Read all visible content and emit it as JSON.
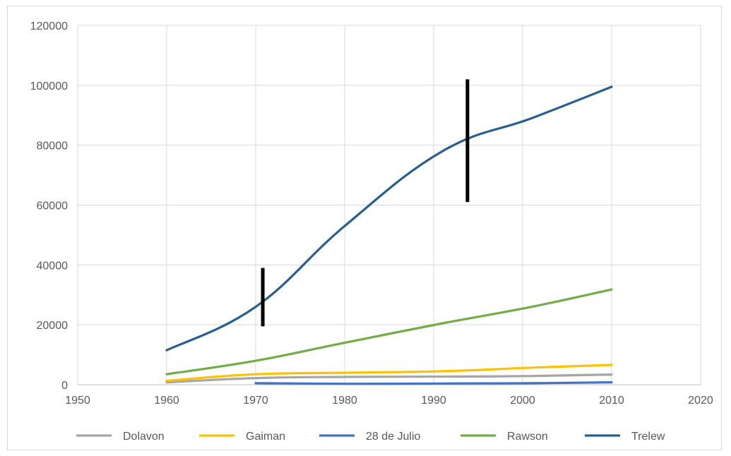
{
  "chart_data": {
    "type": "line",
    "title": "",
    "xlabel": "",
    "ylabel": "",
    "xlim": [
      1950,
      2020
    ],
    "ylim": [
      0,
      120000
    ],
    "x_ticks": [
      1950,
      1960,
      1970,
      1980,
      1990,
      2000,
      2010,
      2020
    ],
    "y_ticks": [
      0,
      20000,
      40000,
      60000,
      80000,
      100000,
      120000
    ],
    "grid": true,
    "legend_position": "bottom",
    "series": [
      {
        "name": "Dolavon",
        "color": "#a5a5a5",
        "points": [
          [
            1960,
            800
          ],
          [
            1970,
            2200
          ],
          [
            1980,
            2600
          ],
          [
            1991,
            2700
          ],
          [
            2001,
            2900
          ],
          [
            2010,
            3400
          ]
        ]
      },
      {
        "name": "Gaiman",
        "color": "#ffc000",
        "points": [
          [
            1960,
            1300
          ],
          [
            1970,
            3500
          ],
          [
            1980,
            4000
          ],
          [
            1991,
            4500
          ],
          [
            2001,
            5700
          ],
          [
            2010,
            6600
          ]
        ]
      },
      {
        "name": "28 de Julio",
        "color": "#4472c4",
        "points": [
          [
            1970,
            500
          ],
          [
            1980,
            300
          ],
          [
            1991,
            400
          ],
          [
            2001,
            500
          ],
          [
            2010,
            800
          ]
        ]
      },
      {
        "name": "Rawson",
        "color": "#70ad47",
        "points": [
          [
            1960,
            3500
          ],
          [
            1970,
            8000
          ],
          [
            1980,
            14000
          ],
          [
            1991,
            20500
          ],
          [
            2001,
            26000
          ],
          [
            2010,
            31800
          ]
        ]
      },
      {
        "name": "Trelew",
        "color": "#255e91",
        "points": [
          [
            1960,
            11500
          ],
          [
            1970,
            26000
          ],
          [
            1980,
            53000
          ],
          [
            1991,
            78000
          ],
          [
            2001,
            89000
          ],
          [
            2010,
            99500
          ]
        ]
      }
    ],
    "annotations": [
      {
        "type": "vertical-bar",
        "color": "#000000",
        "x": 1970.8,
        "y_range": [
          19500,
          39000
        ]
      },
      {
        "type": "vertical-bar",
        "color": "#000000",
        "x": 1993.8,
        "y_range": [
          61000,
          102000
        ]
      }
    ]
  }
}
